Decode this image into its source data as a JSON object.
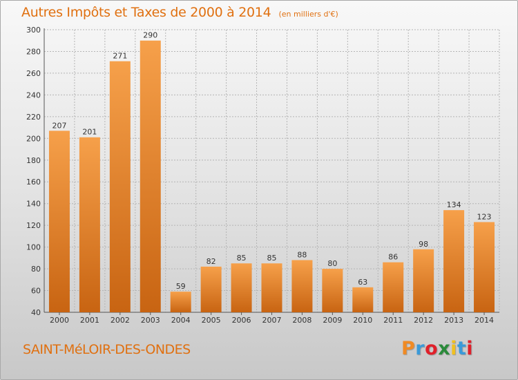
{
  "chart_data": {
    "type": "bar",
    "title": "Autres Impôts et Taxes de 2000 à 2014",
    "unit_label": "(en milliers d'€)",
    "categories": [
      "2000",
      "2001",
      "2002",
      "2003",
      "2004",
      "2005",
      "2006",
      "2007",
      "2008",
      "2009",
      "2010",
      "2011",
      "2012",
      "2013",
      "2014"
    ],
    "values": [
      207,
      201,
      271,
      290,
      59,
      82,
      85,
      85,
      88,
      80,
      63,
      86,
      98,
      134,
      123
    ],
    "value_labels": [
      "207",
      "201",
      "271",
      "290",
      "59",
      "82",
      "85",
      "85",
      "88",
      "80",
      "63",
      "86",
      "98",
      "134",
      "123"
    ],
    "ylim": [
      40,
      300
    ],
    "yticks": [
      40,
      60,
      80,
      100,
      120,
      140,
      160,
      180,
      200,
      220,
      240,
      260,
      280,
      300
    ],
    "ytick_labels": [
      "40",
      "60",
      "80",
      "100",
      "120",
      "140",
      "160",
      "180",
      "200",
      "220",
      "240",
      "260",
      "280",
      "300"
    ],
    "grid": true,
    "bar_color": "#f08a24",
    "xlabel": "",
    "ylabel": ""
  },
  "footer": {
    "commune": "SAINT-MéLOIR-DES-ONDES",
    "logo_text": "Proxiti",
    "logo_colors": [
      "#f08a24",
      "#3a9ad9",
      "#e0202a",
      "#2a8a3a",
      "#f0c020",
      "#3a9ad9",
      "#e0202a"
    ]
  }
}
